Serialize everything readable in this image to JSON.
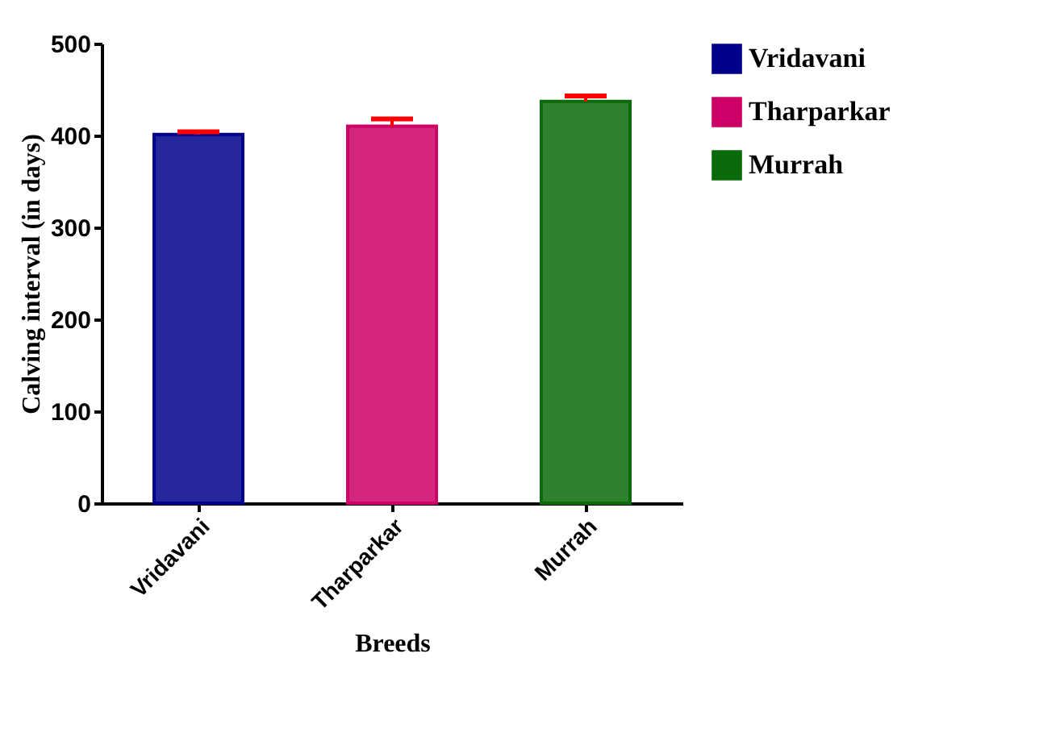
{
  "chart_data": {
    "type": "bar",
    "xlabel": "Breeds",
    "ylabel": "Calving interval (in days)",
    "categories": [
      "Vridavani",
      "Tharparkar",
      "Murrah"
    ],
    "series": [
      {
        "name": "Vridavani",
        "color": "#00008b",
        "values": [
          401,
          null,
          null
        ],
        "errors": [
          [
            401,
            404
          ],
          null,
          null
        ]
      },
      {
        "name": "Tharparkar",
        "color": "#cc0066",
        "values": [
          null,
          410,
          null
        ],
        "errors": [
          null,
          [
            410,
            418
          ],
          null
        ]
      },
      {
        "name": "Murrah",
        "color": "#0b6b0b",
        "values": [
          null,
          null,
          437
        ],
        "errors": [
          null,
          null,
          [
            437,
            443
          ]
        ]
      }
    ],
    "ylim": [
      0,
      500
    ],
    "yticks": [
      0,
      100,
      200,
      300,
      400,
      500
    ],
    "grid": false,
    "legend": "right"
  }
}
